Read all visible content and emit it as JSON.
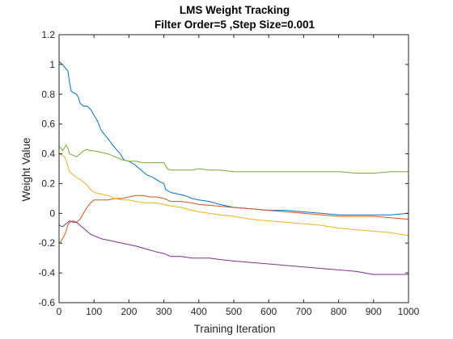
{
  "chart_data": {
    "type": "line",
    "title": "LMS Weight Tracking",
    "subtitle": "Filter Order=5 ,Step Size=0.001",
    "xlabel": "Training Iteration",
    "ylabel": "Weight Value",
    "xlim": [
      0,
      1000
    ],
    "ylim": [
      -0.6,
      1.2
    ],
    "xticks": [
      0,
      100,
      200,
      300,
      400,
      500,
      600,
      700,
      800,
      900,
      1000
    ],
    "xtick_labels": [
      "0",
      "100",
      "200",
      "300",
      "400",
      "500",
      "600",
      "700",
      "800",
      "900",
      "1000"
    ],
    "yticks": [
      -0.6,
      -0.4,
      -0.2,
      0,
      0.2,
      0.4,
      0.6,
      0.8,
      1,
      1.2
    ],
    "ytick_labels": [
      "-0.6",
      "-0.4",
      "-0.2",
      "0",
      "0.2",
      "0.4",
      "0.6",
      "0.8",
      "1",
      "1.2"
    ],
    "grid": false,
    "box": true,
    "series": [
      {
        "color": "#0072BD",
        "points": [
          [
            0,
            1.02
          ],
          [
            10,
            1.0
          ],
          [
            20,
            0.97
          ],
          [
            25,
            0.96
          ],
          [
            30,
            0.88
          ],
          [
            35,
            0.82
          ],
          [
            50,
            0.8
          ],
          [
            55,
            0.78
          ],
          [
            60,
            0.74
          ],
          [
            70,
            0.72
          ],
          [
            80,
            0.72
          ],
          [
            90,
            0.7
          ],
          [
            100,
            0.66
          ],
          [
            110,
            0.62
          ],
          [
            120,
            0.56
          ],
          [
            140,
            0.5
          ],
          [
            160,
            0.44
          ],
          [
            175,
            0.4
          ],
          [
            185,
            0.36
          ],
          [
            200,
            0.35
          ],
          [
            215,
            0.33
          ],
          [
            230,
            0.3
          ],
          [
            250,
            0.26
          ],
          [
            270,
            0.24
          ],
          [
            290,
            0.21
          ],
          [
            300,
            0.2
          ],
          [
            305,
            0.16
          ],
          [
            320,
            0.14
          ],
          [
            340,
            0.13
          ],
          [
            360,
            0.12
          ],
          [
            380,
            0.1
          ],
          [
            400,
            0.09
          ],
          [
            430,
            0.08
          ],
          [
            460,
            0.06
          ],
          [
            480,
            0.05
          ],
          [
            500,
            0.04
          ],
          [
            550,
            0.03
          ],
          [
            600,
            0.02
          ],
          [
            650,
            0.02
          ],
          [
            700,
            0.01
          ],
          [
            750,
            0.0
          ],
          [
            800,
            -0.01
          ],
          [
            850,
            -0.01
          ],
          [
            900,
            -0.01
          ],
          [
            950,
            -0.01
          ],
          [
            1000,
            0.0
          ]
        ]
      },
      {
        "color": "#D95319",
        "points": [
          [
            0,
            -0.2
          ],
          [
            5,
            -0.19
          ],
          [
            10,
            -0.17
          ],
          [
            15,
            -0.15
          ],
          [
            20,
            -0.12
          ],
          [
            25,
            -0.08
          ],
          [
            30,
            -0.06
          ],
          [
            40,
            -0.05
          ],
          [
            50,
            -0.06
          ],
          [
            60,
            -0.04
          ],
          [
            70,
            0.0
          ],
          [
            80,
            0.04
          ],
          [
            90,
            0.07
          ],
          [
            100,
            0.09
          ],
          [
            120,
            0.09
          ],
          [
            140,
            0.09
          ],
          [
            160,
            0.1
          ],
          [
            180,
            0.1
          ],
          [
            200,
            0.11
          ],
          [
            220,
            0.12
          ],
          [
            240,
            0.12
          ],
          [
            260,
            0.11
          ],
          [
            280,
            0.11
          ],
          [
            300,
            0.1
          ],
          [
            320,
            0.08
          ],
          [
            350,
            0.08
          ],
          [
            380,
            0.07
          ],
          [
            400,
            0.06
          ],
          [
            450,
            0.05
          ],
          [
            500,
            0.04
          ],
          [
            550,
            0.03
          ],
          [
            600,
            0.02
          ],
          [
            650,
            0.01
          ],
          [
            700,
            0.0
          ],
          [
            750,
            -0.01
          ],
          [
            800,
            -0.02
          ],
          [
            850,
            -0.02
          ],
          [
            900,
            -0.02
          ],
          [
            950,
            -0.03
          ],
          [
            1000,
            -0.04
          ]
        ]
      },
      {
        "color": "#EDB120",
        "points": [
          [
            0,
            0.4
          ],
          [
            10,
            0.39
          ],
          [
            15,
            0.38
          ],
          [
            20,
            0.36
          ],
          [
            25,
            0.32
          ],
          [
            30,
            0.28
          ],
          [
            40,
            0.26
          ],
          [
            50,
            0.24
          ],
          [
            60,
            0.23
          ],
          [
            70,
            0.21
          ],
          [
            80,
            0.19
          ],
          [
            90,
            0.16
          ],
          [
            100,
            0.14
          ],
          [
            120,
            0.13
          ],
          [
            140,
            0.12
          ],
          [
            160,
            0.1
          ],
          [
            180,
            0.09
          ],
          [
            200,
            0.09
          ],
          [
            220,
            0.08
          ],
          [
            250,
            0.07
          ],
          [
            280,
            0.07
          ],
          [
            300,
            0.06
          ],
          [
            320,
            0.05
          ],
          [
            350,
            0.04
          ],
          [
            380,
            0.02
          ],
          [
            400,
            0.01
          ],
          [
            430,
            0.0
          ],
          [
            460,
            -0.01
          ],
          [
            500,
            -0.02
          ],
          [
            550,
            -0.04
          ],
          [
            600,
            -0.05
          ],
          [
            650,
            -0.06
          ],
          [
            700,
            -0.07
          ],
          [
            750,
            -0.08
          ],
          [
            800,
            -0.1
          ],
          [
            850,
            -0.11
          ],
          [
            900,
            -0.12
          ],
          [
            950,
            -0.13
          ],
          [
            1000,
            -0.15
          ]
        ]
      },
      {
        "color": "#7E2F8E",
        "points": [
          [
            0,
            -0.08
          ],
          [
            10,
            -0.09
          ],
          [
            20,
            -0.07
          ],
          [
            30,
            -0.05
          ],
          [
            40,
            -0.06
          ],
          [
            50,
            -0.06
          ],
          [
            60,
            -0.08
          ],
          [
            70,
            -0.1
          ],
          [
            80,
            -0.12
          ],
          [
            90,
            -0.14
          ],
          [
            100,
            -0.15
          ],
          [
            120,
            -0.17
          ],
          [
            140,
            -0.18
          ],
          [
            160,
            -0.19
          ],
          [
            180,
            -0.2
          ],
          [
            200,
            -0.21
          ],
          [
            220,
            -0.22
          ],
          [
            250,
            -0.24
          ],
          [
            280,
            -0.26
          ],
          [
            300,
            -0.27
          ],
          [
            320,
            -0.29
          ],
          [
            350,
            -0.29
          ],
          [
            380,
            -0.3
          ],
          [
            400,
            -0.3
          ],
          [
            430,
            -0.3
          ],
          [
            460,
            -0.31
          ],
          [
            500,
            -0.32
          ],
          [
            550,
            -0.33
          ],
          [
            600,
            -0.34
          ],
          [
            650,
            -0.35
          ],
          [
            700,
            -0.36
          ],
          [
            750,
            -0.37
          ],
          [
            800,
            -0.38
          ],
          [
            850,
            -0.39
          ],
          [
            900,
            -0.41
          ],
          [
            950,
            -0.41
          ],
          [
            1000,
            -0.41
          ]
        ]
      },
      {
        "color": "#77AC30",
        "points": [
          [
            0,
            0.45
          ],
          [
            5,
            0.44
          ],
          [
            10,
            0.42
          ],
          [
            15,
            0.44
          ],
          [
            20,
            0.46
          ],
          [
            25,
            0.44
          ],
          [
            30,
            0.4
          ],
          [
            40,
            0.39
          ],
          [
            50,
            0.38
          ],
          [
            60,
            0.4
          ],
          [
            70,
            0.42
          ],
          [
            80,
            0.43
          ],
          [
            90,
            0.42
          ],
          [
            100,
            0.42
          ],
          [
            120,
            0.41
          ],
          [
            140,
            0.4
          ],
          [
            160,
            0.38
          ],
          [
            180,
            0.36
          ],
          [
            200,
            0.35
          ],
          [
            220,
            0.35
          ],
          [
            240,
            0.34
          ],
          [
            260,
            0.34
          ],
          [
            280,
            0.34
          ],
          [
            300,
            0.34
          ],
          [
            310,
            0.3
          ],
          [
            320,
            0.29
          ],
          [
            350,
            0.29
          ],
          [
            380,
            0.29
          ],
          [
            400,
            0.3
          ],
          [
            430,
            0.29
          ],
          [
            460,
            0.29
          ],
          [
            500,
            0.28
          ],
          [
            550,
            0.28
          ],
          [
            600,
            0.28
          ],
          [
            650,
            0.28
          ],
          [
            700,
            0.28
          ],
          [
            750,
            0.28
          ],
          [
            800,
            0.28
          ],
          [
            850,
            0.27
          ],
          [
            900,
            0.27
          ],
          [
            950,
            0.28
          ],
          [
            1000,
            0.28
          ]
        ]
      }
    ]
  }
}
